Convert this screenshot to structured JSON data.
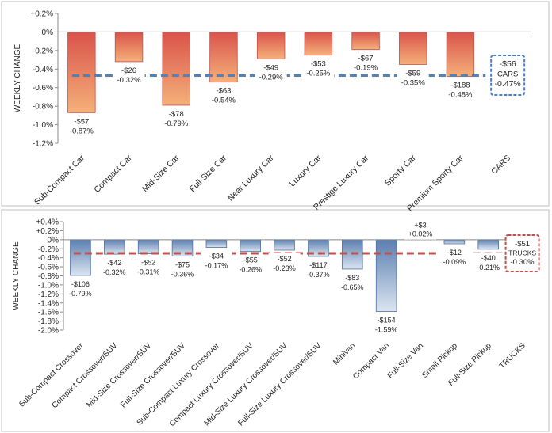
{
  "chart_data": [
    {
      "type": "bar",
      "ylabel": "WEEKLY CHANGE",
      "ylim": [
        -1.2,
        0.2
      ],
      "yticks": [
        0.2,
        0,
        -0.2,
        -0.4,
        -0.6,
        -0.8,
        -1.0,
        -1.2
      ],
      "ytick_labels": [
        "+0.2%",
        "0%",
        "-0.2%",
        "-0.4%",
        "-0.6%",
        "-0.8%",
        "-1.0%",
        "-1.2%"
      ],
      "categories": [
        "Sub-Compact Car",
        "Compact Car",
        "Mid-Size Car",
        "Full-Size Car",
        "Near Luxury Car",
        "Luxury Car",
        "Prestige Luxury Car",
        "Sporty Car",
        "Premium Sporty Car"
      ],
      "values": [
        -0.87,
        -0.32,
        -0.79,
        -0.54,
        -0.29,
        -0.25,
        -0.19,
        -0.35,
        -0.48
      ],
      "dollar_labels": [
        "-$57",
        "-$26",
        "-$78",
        "-$63",
        "-$49",
        "-$53",
        "-$67",
        "-$59",
        "-$188"
      ],
      "percent_labels": [
        "-0.87%",
        "-0.32%",
        "-0.79%",
        "-0.54%",
        "-0.29%",
        "-0.25%",
        "-0.19%",
        "-0.35%",
        "-0.48%"
      ],
      "average": {
        "category": "CARS",
        "value": -0.47,
        "dollar_label": "-$56",
        "name_label": "CARS",
        "percent_label": "-0.47%"
      },
      "grid": false,
      "colors": {
        "bar_top": "#d9534a",
        "bar_bottom": "#f5b07a",
        "average_line": "#4f81bd",
        "box_border": "#4a7ec4"
      }
    },
    {
      "type": "bar",
      "ylabel": "WEEKLY CHANGE",
      "ylim": [
        -2.0,
        0.4
      ],
      "yticks": [
        0.4,
        0.2,
        0,
        -0.2,
        -0.4,
        -0.6,
        -0.8,
        -1.0,
        -1.2,
        -1.4,
        -1.6,
        -1.8,
        -2.0
      ],
      "ytick_labels": [
        "+0.4%",
        "+0.2%",
        "0%",
        "-0.2%",
        "-0.4%",
        "-0.6%",
        "-0.8%",
        "-1.0%",
        "-1.2%",
        "-1.4%",
        "-1.6%",
        "-1.8%",
        "-2.0%"
      ],
      "categories": [
        "Sub-Compact Crossover",
        "Compact Crossover/SUV",
        "Mid-Size Crossover/SUV",
        "Full-Size Crossover/SUV",
        "Sub-Compact Luxury Crossover",
        "Compact Luxury Crossover/SUV",
        "Mid-Size Luxury Crossover/SUV",
        "Full-Size Luxury Crossover/SUV",
        "Minivan",
        "Compact Van",
        "Full-Size Van",
        "Small Pickup",
        "Full-Size Pickup"
      ],
      "values": [
        -0.79,
        -0.32,
        -0.31,
        -0.36,
        -0.17,
        -0.26,
        -0.23,
        -0.37,
        -0.65,
        -1.59,
        0.02,
        -0.09,
        -0.21
      ],
      "dollar_labels": [
        "-$106",
        "-$42",
        "-$52",
        "-$75",
        "-$34",
        "-$55",
        "-$52",
        "-$117",
        "-$83",
        "-$154",
        "+$3",
        "-$12",
        "-$40"
      ],
      "percent_labels": [
        "-0.79%",
        "-0.32%",
        "-0.31%",
        "-0.36%",
        "-0.17%",
        "-0.26%",
        "-0.23%",
        "-0.37%",
        "-0.65%",
        "-1.59%",
        "+0.02%",
        "-0.09%",
        "-0.21%"
      ],
      "average": {
        "category": "TRUCKS",
        "value": -0.3,
        "dollar_label": "-$51",
        "name_label": "TRUCKS",
        "percent_label": "-0.30%"
      },
      "grid": false,
      "colors": {
        "bar_top": "#5b7fb0",
        "bar_bottom": "#dbe5f1",
        "average_line": "#c0504d",
        "box_border": "#c0504d"
      }
    }
  ]
}
